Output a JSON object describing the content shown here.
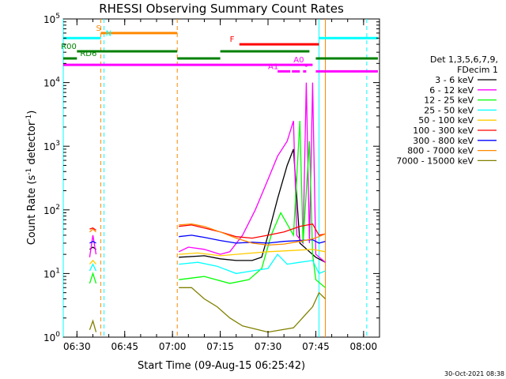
{
  "chart_data": {
    "type": "line",
    "title": "RHESSI Observing Summary Count Rates",
    "xlabel": "Start Time (09-Aug-15 06:25:42)",
    "ylabel_main": "Count Rate (s",
    "ylabel_sup1": "-1",
    "ylabel_mid": " detector",
    "ylabel_sup2": "-1",
    "ylabel_end": ")",
    "ylog": true,
    "ylim": [
      1,
      100000
    ],
    "xlim": [
      "06:25:42",
      "08:05:00"
    ],
    "x_ticks": [
      "06:30",
      "06:45",
      "07:00",
      "07:15",
      "07:30",
      "07:45",
      "08:00"
    ],
    "y_ticks": [
      {
        "base": "10",
        "exp": "0",
        "value": 1
      },
      {
        "base": "10",
        "exp": "1",
        "value": 10
      },
      {
        "base": "10",
        "exp": "2",
        "value": 100
      },
      {
        "base": "10",
        "exp": "3",
        "value": 1000
      },
      {
        "base": "10",
        "exp": "4",
        "value": 10000
      },
      {
        "base": "10",
        "exp": "5",
        "value": 100000
      }
    ],
    "legend_header": [
      "Det 1,3,5,6,7,9,",
      "FDecim 1"
    ],
    "legend_position": "right",
    "series": [
      {
        "name": "3 - 6 keV",
        "color": "#000000",
        "segments": [
          [
            [
              "06:34",
              24
            ],
            [
              "06:35",
              26
            ],
            [
              "06:36",
              24
            ]
          ],
          [
            [
              "07:02",
              18
            ],
            [
              "07:10",
              19
            ],
            [
              "07:15",
              17
            ],
            [
              "07:20",
              16
            ],
            [
              "07:25",
              16
            ],
            [
              "07:28",
              18
            ],
            [
              "07:30",
              40
            ],
            [
              "07:33",
              150
            ],
            [
              "07:36",
              500
            ],
            [
              "07:38",
              900
            ],
            [
              "07:40",
              30
            ],
            [
              "07:43",
              22
            ],
            [
              "07:45",
              18
            ],
            [
              "07:48",
              15
            ]
          ]
        ]
      },
      {
        "name": "6 - 12 keV",
        "color": "#ff00ff",
        "segments": [
          [
            [
              "06:34",
              18
            ],
            [
              "06:35",
              40
            ],
            [
              "06:36",
              20
            ]
          ],
          [
            [
              "07:02",
              22
            ],
            [
              "07:05",
              26
            ],
            [
              "07:10",
              24
            ],
            [
              "07:15",
              20
            ],
            [
              "07:18",
              22
            ],
            [
              "07:22",
              40
            ],
            [
              "07:26",
              100
            ],
            [
              "07:30",
              300
            ],
            [
              "07:33",
              700
            ],
            [
              "07:36",
              1200
            ],
            [
              "07:38",
              2500
            ],
            [
              "07:39",
              40
            ],
            [
              "07:41",
              30
            ],
            [
              "07:42",
              10000
            ],
            [
              "07:43",
              30
            ],
            [
              "07:44",
              10000
            ],
            [
              "07:45",
              20
            ],
            [
              "07:48",
              15
            ]
          ]
        ]
      },
      {
        "name": "12 - 25 keV",
        "color": "#00ff00",
        "segments": [
          [
            [
              "06:34",
              7
            ],
            [
              "06:35",
              10
            ],
            [
              "06:36",
              7
            ]
          ],
          [
            [
              "07:02",
              8
            ],
            [
              "07:10",
              9
            ],
            [
              "07:18",
              7
            ],
            [
              "07:24",
              8
            ],
            [
              "07:28",
              12
            ],
            [
              "07:31",
              40
            ],
            [
              "07:34",
              90
            ],
            [
              "07:36",
              60
            ],
            [
              "07:38",
              40
            ],
            [
              "07:40",
              2500
            ],
            [
              "07:41",
              30
            ],
            [
              "07:43",
              1200
            ],
            [
              "07:44",
              20
            ],
            [
              "07:45",
              8
            ],
            [
              "07:48",
              6
            ]
          ]
        ]
      },
      {
        "name": "25 - 50 keV",
        "color": "#00ffff",
        "segments": [
          [
            [
              "06:34",
              11
            ],
            [
              "06:35",
              14
            ],
            [
              "06:36",
              11
            ]
          ],
          [
            [
              "07:02",
              14
            ],
            [
              "07:08",
              15
            ],
            [
              "07:14",
              13
            ],
            [
              "07:20",
              10
            ],
            [
              "07:25",
              11
            ],
            [
              "07:30",
              12
            ],
            [
              "07:33",
              20
            ],
            [
              "07:36",
              14
            ],
            [
              "07:40",
              15
            ],
            [
              "07:44",
              16
            ],
            [
              "07:46",
              10
            ],
            [
              "07:48",
              11
            ]
          ]
        ]
      },
      {
        "name": "50 - 100 keV",
        "color": "#ffcc00",
        "segments": [
          [
            [
              "06:34",
              14
            ],
            [
              "06:35",
              16
            ],
            [
              "06:36",
              14
            ]
          ],
          [
            [
              "07:02",
              20
            ],
            [
              "07:08",
              21
            ],
            [
              "07:15",
              19
            ],
            [
              "07:20",
              20
            ],
            [
              "07:30",
              22
            ],
            [
              "07:38",
              23
            ],
            [
              "07:44",
              24
            ],
            [
              "07:48",
              22
            ]
          ]
        ]
      },
      {
        "name": "100 - 300 keV",
        "color": "#ff0000",
        "segments": [
          [
            [
              "06:34",
              50
            ],
            [
              "06:35",
              52
            ],
            [
              "06:36",
              48
            ]
          ],
          [
            [
              "07:02",
              55
            ],
            [
              "07:06",
              58
            ],
            [
              "07:10",
              52
            ],
            [
              "07:15",
              45
            ],
            [
              "07:20",
              38
            ],
            [
              "07:25",
              36
            ],
            [
              "07:30",
              40
            ],
            [
              "07:35",
              45
            ],
            [
              "07:40",
              55
            ],
            [
              "07:44",
              60
            ],
            [
              "07:46",
              40
            ],
            [
              "07:48",
              42
            ]
          ]
        ]
      },
      {
        "name": "300 - 800 keV",
        "color": "#0000ff",
        "segments": [
          [
            [
              "06:34",
              30
            ],
            [
              "06:35",
              32
            ],
            [
              "06:36",
              30
            ]
          ],
          [
            [
              "07:02",
              38
            ],
            [
              "07:06",
              40
            ],
            [
              "07:10",
              37
            ],
            [
              "07:15",
              33
            ],
            [
              "07:20",
              30
            ],
            [
              "07:25",
              31
            ],
            [
              "07:30",
              30
            ],
            [
              "07:35",
              32
            ],
            [
              "07:40",
              33
            ],
            [
              "07:44",
              34
            ],
            [
              "07:46",
              30
            ],
            [
              "07:48",
              32
            ]
          ]
        ]
      },
      {
        "name": "800 - 7000 keV",
        "color": "#ff8800",
        "segments": [
          [
            [
              "06:34",
              45
            ],
            [
              "06:35",
              50
            ],
            [
              "06:36",
              45
            ]
          ],
          [
            [
              "07:02",
              58
            ],
            [
              "07:06",
              60
            ],
            [
              "07:10",
              55
            ],
            [
              "07:15",
              45
            ],
            [
              "07:20",
              36
            ],
            [
              "07:25",
              30
            ],
            [
              "07:30",
              28
            ],
            [
              "07:35",
              29
            ],
            [
              "07:40",
              32
            ],
            [
              "07:44",
              35
            ],
            [
              "07:46",
              38
            ],
            [
              "07:48",
              42
            ]
          ]
        ]
      },
      {
        "name": "7000 - 15000 keV",
        "color": "#808000",
        "segments": [
          [
            [
              "06:34",
              1.3
            ],
            [
              "06:35",
              1.8
            ],
            [
              "06:36",
              1.2
            ]
          ],
          [
            [
              "07:02",
              6
            ],
            [
              "07:06",
              6
            ],
            [
              "07:10",
              4
            ],
            [
              "07:14",
              3
            ],
            [
              "07:18",
              2
            ],
            [
              "07:22",
              1.5
            ],
            [
              "07:30",
              1.2
            ],
            [
              "07:38",
              1.4
            ],
            [
              "07:44",
              3
            ],
            [
              "07:46",
              5
            ],
            [
              "07:48",
              4
            ]
          ]
        ]
      }
    ],
    "vlines": [
      {
        "time": "06:25:42",
        "color": "#00ffff",
        "style": "solid"
      },
      {
        "time": "06:37:30",
        "color": "#ff8800",
        "style": "dashed"
      },
      {
        "time": "06:38:30",
        "color": "#00ffff",
        "style": "dashed"
      },
      {
        "time": "07:01:30",
        "color": "#ff8800",
        "style": "dashed"
      },
      {
        "time": "07:46:00",
        "color": "#00ffff",
        "style": "solid"
      },
      {
        "time": "07:48:00",
        "color": "#ff8800",
        "style": "solid"
      },
      {
        "time": "08:01:00",
        "color": "#00ffff",
        "style": "dashed"
      }
    ],
    "flag_bars": [
      {
        "label": "S",
        "color": "#ff8800",
        "y": 60000,
        "segments": [
          [
            "06:37:30",
            "07:01:30"
          ]
        ],
        "label_at": "06:36"
      },
      {
        "label": "N",
        "color": "#00ffff",
        "y": 50000,
        "segments": [
          [
            "06:25:42",
            "06:37:30"
          ],
          [
            "07:46:00",
            "08:04:30"
          ]
        ],
        "label_at": "06:39"
      },
      {
        "label": "F",
        "color": "#ff0000",
        "y": 40000,
        "segments": [
          [
            "07:21:00",
            "07:46:00"
          ]
        ],
        "label_at": "07:18"
      },
      {
        "label": "R00",
        "color": "#008000",
        "y": 31000,
        "segments": [
          [
            "06:30:00",
            "07:01:30"
          ],
          [
            "07:15:00",
            "07:43:00"
          ]
        ],
        "label_at": "06:25"
      },
      {
        "label": "RD6",
        "color": "#008000",
        "y": 24000,
        "segments": [
          [
            "06:25:42",
            "06:30:00"
          ],
          [
            "07:01:30",
            "07:15:00"
          ],
          [
            "07:45:00",
            "08:04:30"
          ]
        ],
        "label_at": "06:31"
      },
      {
        "label": "A0",
        "color": "#ff00ff",
        "y": 19000,
        "segments": [
          [
            "06:25:42",
            "07:44:00"
          ]
        ],
        "label_at": "07:38"
      },
      {
        "label": "A1",
        "color": "#ff00ff",
        "y": 15000,
        "segments": [
          [
            "07:33:00",
            "07:37:00"
          ],
          [
            "07:37:30",
            "07:40:00"
          ],
          [
            "07:41:00",
            "07:42:00"
          ],
          [
            "07:45:00",
            "08:04:30"
          ]
        ],
        "label_at": "07:30"
      }
    ],
    "a0_dot_at": "07:42:00"
  },
  "footer": {
    "timestamp": "30-Oct-2021 08:38"
  }
}
